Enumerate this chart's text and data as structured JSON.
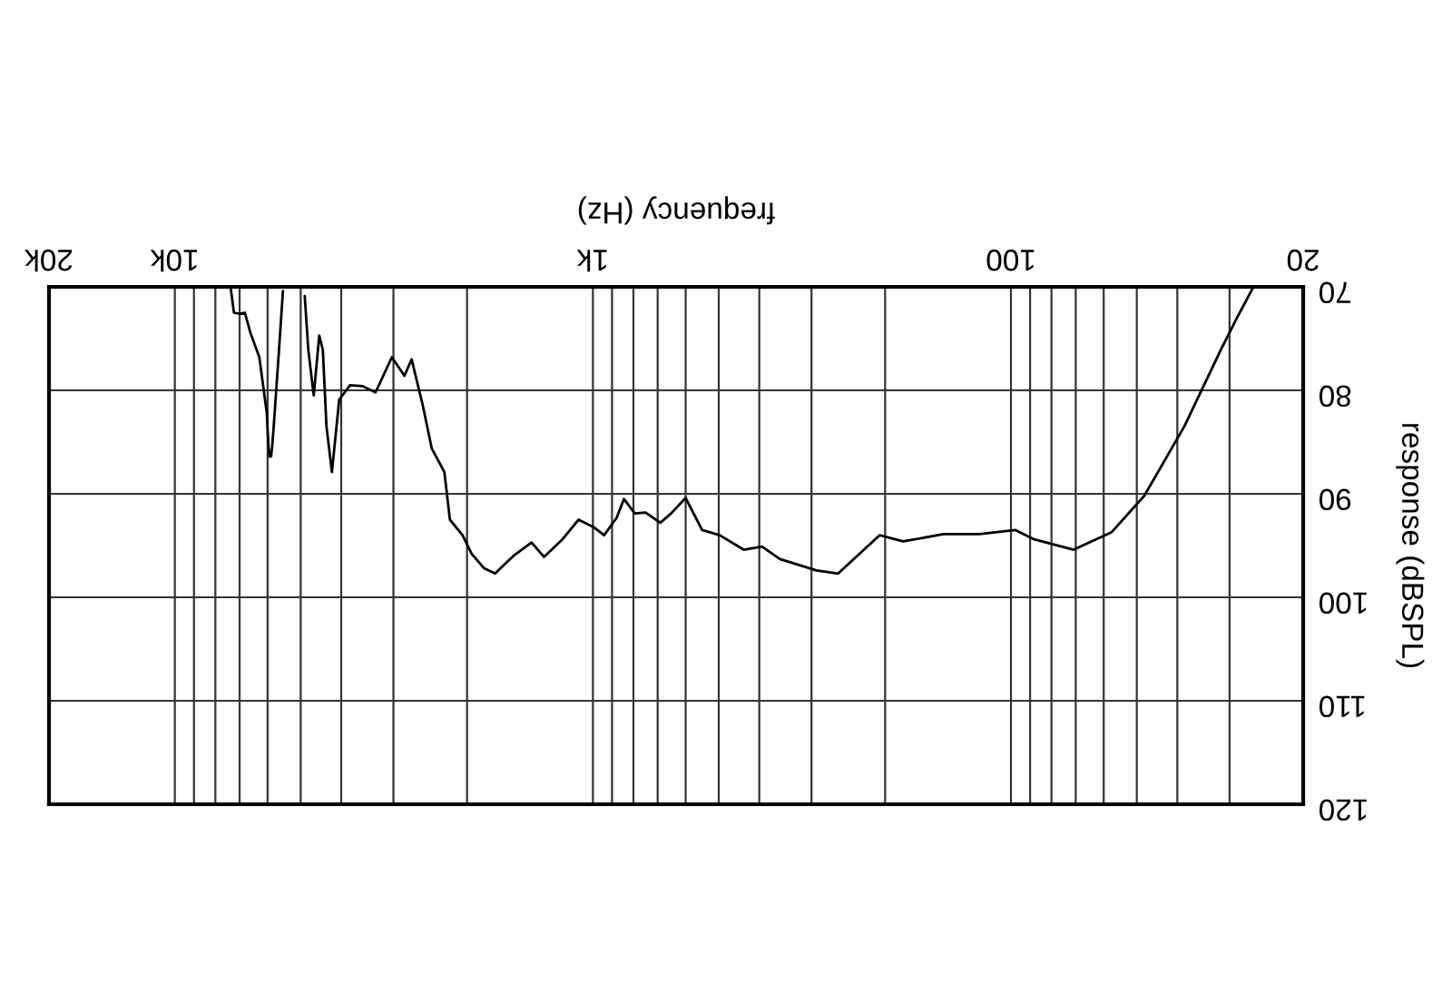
{
  "chart_data": {
    "type": "line",
    "xlabel": "frequency (Hz)",
    "ylabel": "response (dBSPL)",
    "log": "x",
    "xlim": [
      20000,
      20
    ],
    "ylim": [
      120,
      70
    ],
    "xticks": [
      {
        "value": 20,
        "label": "20"
      },
      {
        "value": 30,
        "label": null
      },
      {
        "value": 40,
        "label": null
      },
      {
        "value": 50,
        "label": null
      },
      {
        "value": 60,
        "label": null
      },
      {
        "value": 70,
        "label": null
      },
      {
        "value": 80,
        "label": null
      },
      {
        "value": 90,
        "label": null
      },
      {
        "value": 100,
        "label": "100"
      },
      {
        "value": 200,
        "label": null
      },
      {
        "value": 300,
        "label": null
      },
      {
        "value": 400,
        "label": null
      },
      {
        "value": 500,
        "label": null
      },
      {
        "value": 600,
        "label": null
      },
      {
        "value": 700,
        "label": null
      },
      {
        "value": 800,
        "label": null
      },
      {
        "value": 900,
        "label": null
      },
      {
        "value": 1000,
        "label": "1k"
      },
      {
        "value": 2000,
        "label": null
      },
      {
        "value": 3000,
        "label": null
      },
      {
        "value": 4000,
        "label": null
      },
      {
        "value": 5000,
        "label": null
      },
      {
        "value": 6000,
        "label": null
      },
      {
        "value": 7000,
        "label": null
      },
      {
        "value": 8000,
        "label": null
      },
      {
        "value": 9000,
        "label": null
      },
      {
        "value": 10000,
        "label": "10k"
      },
      {
        "value": 20000,
        "label": "20k"
      }
    ],
    "yticks": [
      70,
      80,
      90,
      100,
      110,
      120
    ],
    "grid": true,
    "marker": "none",
    "line_style": "solid",
    "series": [
      {
        "color": "#000000",
        "x": [
          26.3,
          28.8,
          31.5,
          38.5,
          48,
          57.4,
          70.8,
          88,
          97.5,
          119,
          145,
          181,
          206,
          259,
          292,
          357,
          394,
          436,
          497,
          548,
          600,
          650,
          690,
          748,
          794,
          843,
          877,
          940,
          998,
          1082,
          1183,
          1309,
          1402,
          1550,
          1714,
          1820,
          1950,
          2050,
          2198,
          2266,
          2430,
          2554,
          2714,
          2824,
          3026,
          3311,
          3552,
          3810,
          4044,
          4210,
          4338,
          4426,
          4514,
          4654,
          4794,
          4890,
          5200,
          5514,
          5624,
          5794,
          5850,
          5885,
          5935,
          5970,
          6030,
          6280,
          6600,
          6800,
          7008,
          7220,
          7360
        ],
        "values": [
          70,
          73.0,
          76.1,
          83.5,
          90.2,
          93.7,
          95.4,
          94.4,
          93.5,
          93.9,
          93.9,
          94.6,
          94.0,
          97.7,
          97.4,
          96.3,
          95.1,
          95.4,
          94.0,
          93.5,
          90.4,
          91.9,
          92.8,
          91.8,
          91.9,
          90.5,
          92.3,
          94.0,
          93.2,
          92.5,
          94.4,
          96.1,
          94.7,
          96.0,
          97.7,
          97.2,
          95.8,
          94.0,
          92.5,
          87.9,
          85.6,
          81.4,
          77.0,
          78.6,
          76.8,
          80.2,
          79.6,
          79.5,
          80.9,
          87.9,
          83.5,
          76.1,
          74.7,
          80.5,
          76.1,
          70.9,
          null,
          70.4,
          75.6,
          83.2,
          85.4,
          86.4,
          86.4,
          85.4,
          82.1,
          76.8,
          74.4,
          72.5,
          72.6,
          72.5,
          70.0
        ]
      }
    ]
  }
}
